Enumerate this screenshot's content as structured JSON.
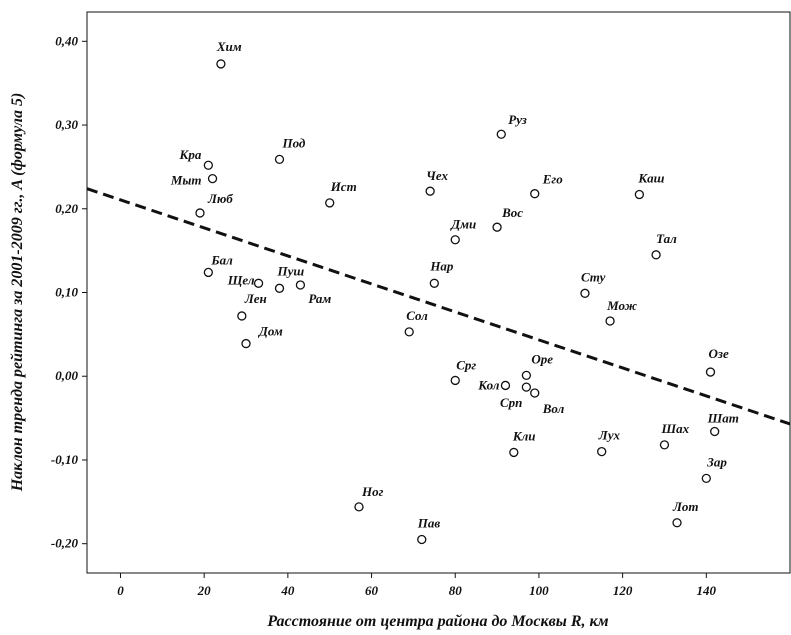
{
  "chart_data": {
    "type": "scatter",
    "xlabel": "Расстояние от центра района до Москвы R, км",
    "ylabel": "Наклон тренда рейтинга за 2001-2009 гг., A (формула 5)",
    "xlim": [
      -8,
      160
    ],
    "ylim": [
      -0.235,
      0.435
    ],
    "x_ticks": [
      0,
      20,
      40,
      60,
      80,
      100,
      120,
      140
    ],
    "x_tick_labels": [
      "0",
      "20",
      "40",
      "60",
      "80",
      "100",
      "120",
      "140"
    ],
    "y_ticks": [
      -0.2,
      -0.1,
      0.0,
      0.1,
      0.2,
      0.3,
      0.4
    ],
    "y_tick_labels": [
      "-0,20",
      "-0,10",
      "0,00",
      "0,10",
      "0,20",
      "0,30",
      "0,40"
    ],
    "grid": false,
    "trend_line": {
      "style": "dashed",
      "x": [
        -8,
        160
      ],
      "y": [
        0.224,
        -0.057
      ]
    },
    "points": [
      {
        "label": "Хим",
        "x": 24,
        "y": 0.373
      },
      {
        "label": "Руз",
        "x": 91,
        "y": 0.289
      },
      {
        "label": "Под",
        "x": 38,
        "y": 0.259
      },
      {
        "label": "Кра",
        "x": 21,
        "y": 0.252
      },
      {
        "label": "Мыт",
        "x": 22,
        "y": 0.236
      },
      {
        "label": "Чех",
        "x": 74,
        "y": 0.221
      },
      {
        "label": "Его",
        "x": 99,
        "y": 0.218
      },
      {
        "label": "Каш",
        "x": 124,
        "y": 0.217
      },
      {
        "label": "Ист",
        "x": 50,
        "y": 0.207
      },
      {
        "label": "Люб",
        "x": 19,
        "y": 0.195
      },
      {
        "label": "Вос",
        "x": 90,
        "y": 0.178
      },
      {
        "label": "Дми",
        "x": 80,
        "y": 0.163
      },
      {
        "label": "Тал",
        "x": 128,
        "y": 0.145
      },
      {
        "label": "Бал",
        "x": 21,
        "y": 0.124
      },
      {
        "label": "Щел",
        "x": 33,
        "y": 0.111
      },
      {
        "label": "Нар",
        "x": 75,
        "y": 0.111
      },
      {
        "label": "Пуш",
        "x": 38,
        "y": 0.105
      },
      {
        "label": "Рам",
        "x": 43,
        "y": 0.109
      },
      {
        "label": "Сту",
        "x": 111,
        "y": 0.099
      },
      {
        "label": "Лен",
        "x": 29,
        "y": 0.072
      },
      {
        "label": "Мож",
        "x": 117,
        "y": 0.066
      },
      {
        "label": "Сол",
        "x": 69,
        "y": 0.053
      },
      {
        "label": "Дом",
        "x": 30,
        "y": 0.039
      },
      {
        "label": "Озе",
        "x": 141,
        "y": 0.005
      },
      {
        "label": "Оре",
        "x": 97,
        "y": 0.001
      },
      {
        "label": "Срг",
        "x": 80,
        "y": -0.005
      },
      {
        "label": "Кол",
        "x": 92,
        "y": -0.011
      },
      {
        "label": "Срп",
        "x": 97,
        "y": -0.013
      },
      {
        "label": "Вол",
        "x": 99,
        "y": -0.02
      },
      {
        "label": "Шат",
        "x": 142,
        "y": -0.066
      },
      {
        "label": "Шах",
        "x": 130,
        "y": -0.082
      },
      {
        "label": "Лух",
        "x": 115,
        "y": -0.09
      },
      {
        "label": "Кли",
        "x": 94,
        "y": -0.091
      },
      {
        "label": "Зар",
        "x": 140,
        "y": -0.122
      },
      {
        "label": "Ног",
        "x": 57,
        "y": -0.156
      },
      {
        "label": "Лот",
        "x": 133,
        "y": -0.175
      },
      {
        "label": "Пав",
        "x": 72,
        "y": -0.195
      }
    ]
  }
}
